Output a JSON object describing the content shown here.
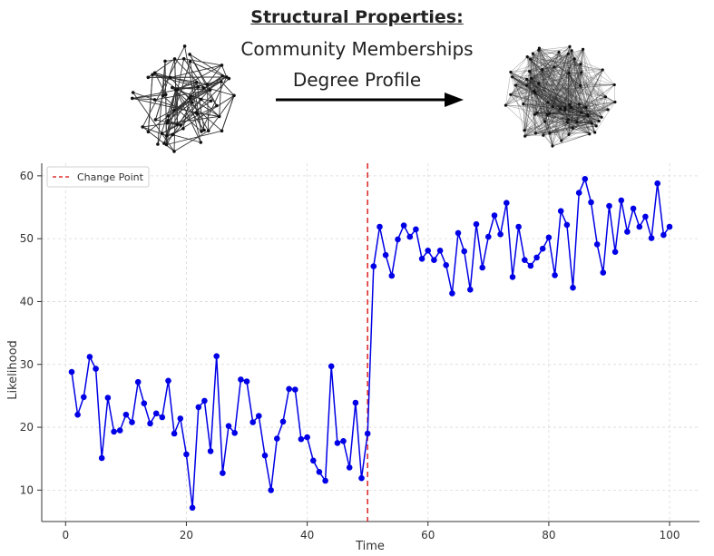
{
  "header": {
    "title": "Structural Properties:",
    "line1": "Community Memberships",
    "line2": "Degree Profile"
  },
  "chart_data": {
    "type": "line",
    "title": "",
    "xlabel": "Time",
    "ylabel": "Likelihood",
    "xlim": [
      -3.95,
      104.95
    ],
    "ylim": [
      5,
      62
    ],
    "xticks": [
      0,
      20,
      40,
      60,
      80,
      100
    ],
    "yticks": [
      10,
      20,
      30,
      40,
      50,
      60
    ],
    "grid": true,
    "legend_placement": "top-left",
    "change_point": {
      "label": "Change Point",
      "x": 50,
      "color": "#e03030"
    },
    "series_color": "#0000e6",
    "x": [
      1,
      2,
      3,
      4,
      5,
      6,
      7,
      8,
      9,
      10,
      11,
      12,
      13,
      14,
      15,
      16,
      17,
      18,
      19,
      20,
      21,
      22,
      23,
      24,
      25,
      26,
      27,
      28,
      29,
      30,
      31,
      32,
      33,
      34,
      35,
      36,
      37,
      38,
      39,
      40,
      41,
      42,
      43,
      44,
      45,
      46,
      47,
      48,
      49,
      50,
      51,
      52,
      53,
      54,
      55,
      56,
      57,
      58,
      59,
      60,
      61,
      62,
      63,
      64,
      65,
      66,
      67,
      68,
      69,
      70,
      71,
      72,
      73,
      74,
      75,
      76,
      77,
      78,
      79,
      80,
      81,
      82,
      83,
      84,
      85,
      86,
      87,
      88,
      89,
      90,
      91,
      92,
      93,
      94,
      95,
      96,
      97,
      98,
      99,
      100
    ],
    "values": [
      28.8,
      22.0,
      24.8,
      31.2,
      29.3,
      15.1,
      24.7,
      19.3,
      19.5,
      22.0,
      20.8,
      27.2,
      23.8,
      20.6,
      22.2,
      21.6,
      27.4,
      19.0,
      21.4,
      15.7,
      7.2,
      23.2,
      24.2,
      16.2,
      31.3,
      12.7,
      20.2,
      19.1,
      27.6,
      27.3,
      20.8,
      21.8,
      15.5,
      10.0,
      18.2,
      20.9,
      26.1,
      26.0,
      18.1,
      18.4,
      14.7,
      12.9,
      11.5,
      29.7,
      17.5,
      17.8,
      13.6,
      23.9,
      11.9,
      19.0,
      45.6,
      51.9,
      47.4,
      44.1,
      49.9,
      52.1,
      50.3,
      51.5,
      46.8,
      48.1,
      46.6,
      48.1,
      45.8,
      41.3,
      50.9,
      48.0,
      41.9,
      52.3,
      45.4,
      50.3,
      53.7,
      50.7,
      55.7,
      43.9,
      51.9,
      46.6,
      45.7,
      47.0,
      48.4,
      50.2,
      44.2,
      54.4,
      52.2,
      42.2,
      57.3,
      59.5,
      55.8,
      49.1,
      44.6,
      55.2,
      47.9,
      56.1,
      51.1,
      54.8,
      51.9,
      53.5,
      50.1,
      58.8,
      50.6,
      51.9
    ]
  }
}
